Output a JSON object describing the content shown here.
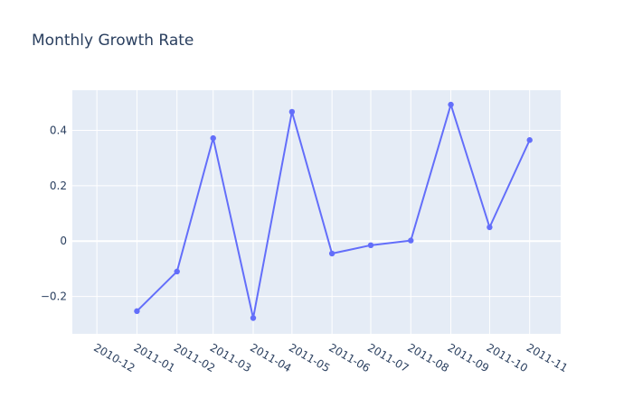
{
  "chart_data": {
    "type": "line",
    "title": "Monthly Growth Rate",
    "xlabel": "",
    "ylabel": "",
    "x_ticks": [
      "2010-12",
      "2011-01",
      "2011-02",
      "2011-03",
      "2011-04",
      "2011-05",
      "2011-06",
      "2011-07",
      "2011-08",
      "2011-09",
      "2011-10",
      "2011-11"
    ],
    "x_range": [
      "2010-11-12",
      "2011-11-25"
    ],
    "y_ticks": [
      -0.2,
      0,
      0.2,
      0.4
    ],
    "y_tick_labels": [
      "−0.2",
      "0",
      "0.2",
      "0.4"
    ],
    "ylim": [
      -0.335,
      0.545
    ],
    "grid": true,
    "series": [
      {
        "color": "#636efa",
        "mode": "lines+markers",
        "x": [
          "2011-01-01",
          "2011-02-01",
          "2011-03-01",
          "2011-04-01",
          "2011-05-01",
          "2011-06-01",
          "2011-07-01",
          "2011-08-01",
          "2011-09-01",
          "2011-10-01",
          "2011-11-01"
        ],
        "y": [
          -0.253,
          -0.11,
          0.372,
          -0.278,
          0.467,
          -0.045,
          -0.015,
          0.002,
          0.493,
          0.05,
          0.365
        ]
      }
    ]
  }
}
